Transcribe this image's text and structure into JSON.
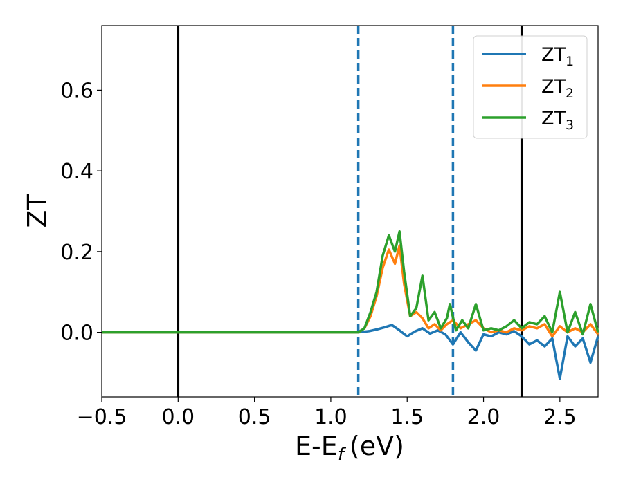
{
  "chart_data": {
    "type": "line",
    "xlabel": "E-E",
    "xlabel_sub": "f",
    "xlabel_unit": "(eV)",
    "ylabel": "ZT",
    "xlim": [
      -0.5,
      2.75
    ],
    "ylim": [
      -0.16,
      0.76
    ],
    "x_ticks": [
      -0.5,
      0.0,
      0.5,
      1.0,
      1.5,
      2.0,
      2.5
    ],
    "x_tick_labels": [
      "−0.5",
      "0.0",
      "0.5",
      "1.0",
      "1.5",
      "2.0",
      "2.5"
    ],
    "y_ticks": [
      0.0,
      0.2,
      0.4,
      0.6
    ],
    "y_tick_labels": [
      "0.0",
      "0.2",
      "0.4",
      "0.6"
    ],
    "grid": false,
    "legend_position": "top-right",
    "vertical_lines": [
      {
        "x": 0.0,
        "style": "solid",
        "color": "#000000"
      },
      {
        "x": 2.25,
        "style": "solid",
        "color": "#000000"
      },
      {
        "x": 1.18,
        "style": "dashed",
        "color": "#1f77b4"
      },
      {
        "x": 1.8,
        "style": "dashed",
        "color": "#1f77b4"
      }
    ],
    "series": [
      {
        "name": "ZT",
        "sub": "1",
        "color": "#1f77b4",
        "x": [
          -0.5,
          1.1,
          1.18,
          1.25,
          1.3,
          1.35,
          1.4,
          1.45,
          1.5,
          1.55,
          1.6,
          1.65,
          1.7,
          1.75,
          1.8,
          1.85,
          1.9,
          1.95,
          2.0,
          2.05,
          2.1,
          2.15,
          2.2,
          2.25,
          2.3,
          2.35,
          2.4,
          2.45,
          2.5,
          2.55,
          2.6,
          2.65,
          2.7,
          2.75
        ],
        "y": [
          0.0,
          0.0,
          0.0,
          0.003,
          0.007,
          0.012,
          0.018,
          0.005,
          -0.01,
          0.002,
          0.01,
          -0.003,
          0.005,
          -0.005,
          -0.03,
          0.0,
          -0.025,
          -0.045,
          -0.005,
          -0.01,
          0.0,
          -0.005,
          0.003,
          -0.01,
          -0.03,
          -0.02,
          -0.035,
          -0.015,
          -0.115,
          -0.01,
          -0.035,
          -0.015,
          -0.075,
          -0.01
        ]
      },
      {
        "name": "ZT",
        "sub": "2",
        "color": "#ff7f0e",
        "x": [
          -0.5,
          1.1,
          1.18,
          1.22,
          1.26,
          1.3,
          1.34,
          1.38,
          1.42,
          1.45,
          1.48,
          1.52,
          1.56,
          1.6,
          1.64,
          1.68,
          1.72,
          1.76,
          1.8,
          1.85,
          1.9,
          1.95,
          2.0,
          2.05,
          2.1,
          2.15,
          2.2,
          2.25,
          2.3,
          2.35,
          2.4,
          2.45,
          2.5,
          2.55,
          2.6,
          2.65,
          2.7,
          2.75
        ],
        "y": [
          0.0,
          0.0,
          0.0,
          0.01,
          0.04,
          0.09,
          0.16,
          0.205,
          0.17,
          0.215,
          0.12,
          0.04,
          0.05,
          0.035,
          0.01,
          0.02,
          0.005,
          0.02,
          0.03,
          0.01,
          0.02,
          0.03,
          0.01,
          0.0,
          0.005,
          0.0,
          0.01,
          0.005,
          0.015,
          0.01,
          0.02,
          -0.01,
          0.015,
          0.0,
          0.01,
          0.0,
          0.02,
          -0.005
        ]
      },
      {
        "name": "ZT",
        "sub": "3",
        "color": "#2ca02c",
        "x": [
          -0.5,
          1.1,
          1.18,
          1.22,
          1.26,
          1.3,
          1.34,
          1.38,
          1.42,
          1.45,
          1.48,
          1.52,
          1.56,
          1.6,
          1.64,
          1.68,
          1.72,
          1.76,
          1.78,
          1.82,
          1.86,
          1.9,
          1.95,
          2.0,
          2.05,
          2.1,
          2.15,
          2.2,
          2.25,
          2.3,
          2.35,
          2.4,
          2.45,
          2.5,
          2.55,
          2.6,
          2.65,
          2.7,
          2.75
        ],
        "y": [
          0.0,
          0.0,
          0.0,
          0.01,
          0.05,
          0.1,
          0.19,
          0.24,
          0.2,
          0.25,
          0.15,
          0.04,
          0.06,
          0.14,
          0.03,
          0.05,
          0.01,
          0.035,
          0.07,
          0.005,
          0.03,
          0.01,
          0.07,
          0.005,
          0.01,
          0.005,
          0.015,
          0.03,
          0.01,
          0.025,
          0.02,
          0.04,
          0.0,
          0.1,
          0.0,
          0.05,
          -0.005,
          0.07,
          0.0
        ]
      }
    ]
  }
}
